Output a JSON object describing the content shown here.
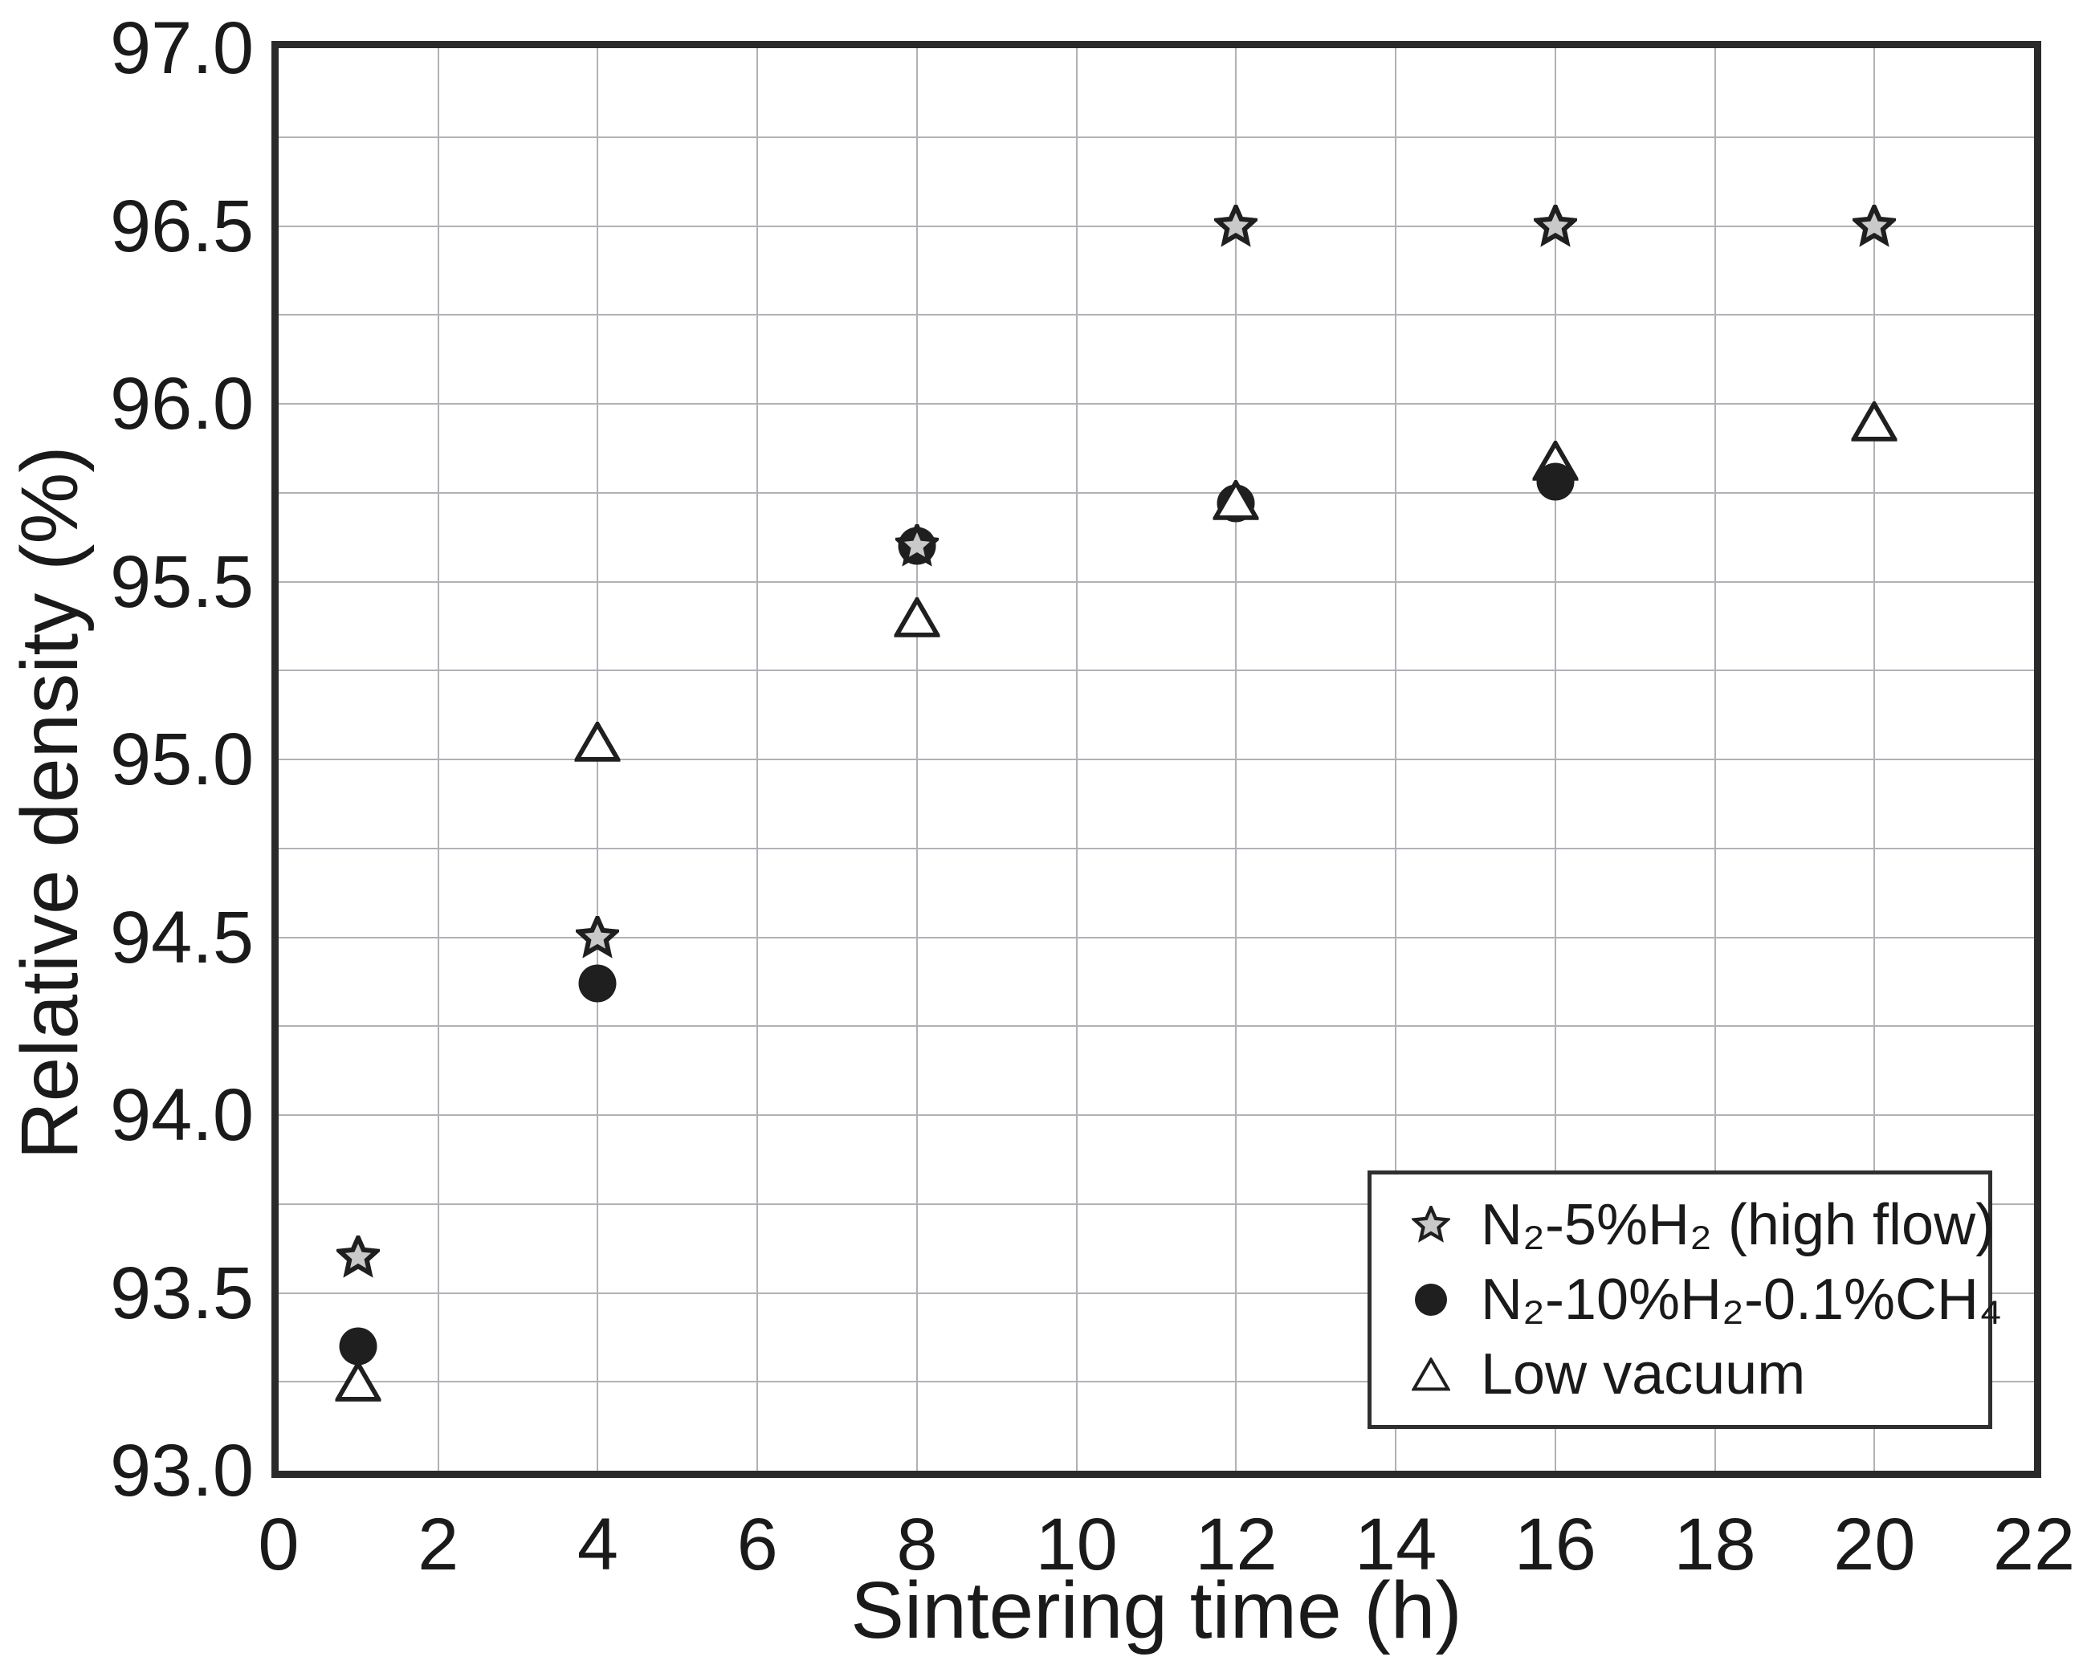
{
  "chart_data": {
    "type": "scatter",
    "title": "",
    "xlabel": "Sintering time (h)",
    "ylabel": "Relative density (%)",
    "xlim": [
      0,
      22
    ],
    "ylim": [
      93.0,
      97.0
    ],
    "x_tick_labels": [
      "0",
      "2",
      "4",
      "6",
      "8",
      "10",
      "12",
      "14",
      "16",
      "18",
      "20",
      "22"
    ],
    "y_tick_labels": [
      "97.0",
      "96.5",
      "96.0",
      "95.5",
      "95.0",
      "94.5",
      "94.0",
      "93.5",
      "93.0"
    ],
    "x_grid_step": 2,
    "y_grid_step": 0.25,
    "grid": true,
    "legend_position": "lower right",
    "series": [
      {
        "name": "N₂-5%H₂ (high flow)",
        "marker": "star",
        "marker_fill": "#c9c9c9",
        "marker_stroke": "#1f1f1f",
        "points": [
          {
            "x": 1,
            "y": 93.6
          },
          {
            "x": 4,
            "y": 94.5
          },
          {
            "x": 8,
            "y": 95.6,
            "z": 6
          },
          {
            "x": 12,
            "y": 96.5
          },
          {
            "x": 16,
            "y": 96.5
          },
          {
            "x": 20,
            "y": 96.5
          }
        ]
      },
      {
        "name": "N₂-10%H₂-0.1%CH₄",
        "marker": "circle",
        "marker_fill": "#1f1f1f",
        "marker_stroke": "#1f1f1f",
        "points": [
          {
            "x": 1,
            "y": 93.35
          },
          {
            "x": 4,
            "y": 94.37
          },
          {
            "x": 8,
            "y": 95.6
          },
          {
            "x": 12,
            "y": 95.72
          },
          {
            "x": 16,
            "y": 95.78,
            "z": 6
          }
        ]
      },
      {
        "name": "Low vacuum",
        "marker": "triangle",
        "marker_fill": "#ffffff",
        "marker_stroke": "#1f1f1f",
        "points": [
          {
            "x": 1,
            "y": 93.25
          },
          {
            "x": 4,
            "y": 95.05
          },
          {
            "x": 8,
            "y": 95.4
          },
          {
            "x": 12,
            "y": 95.73
          },
          {
            "x": 16,
            "y": 95.84
          },
          {
            "x": 20,
            "y": 95.95
          }
        ]
      }
    ]
  },
  "colors": {
    "background": "#ffffff",
    "axis_border": "#2a2a2a",
    "gridline": "#b1b1b7",
    "text": "#1a1a1a",
    "star_fill": "#c9c9c9",
    "marker_stroke": "#1f1f1f"
  }
}
